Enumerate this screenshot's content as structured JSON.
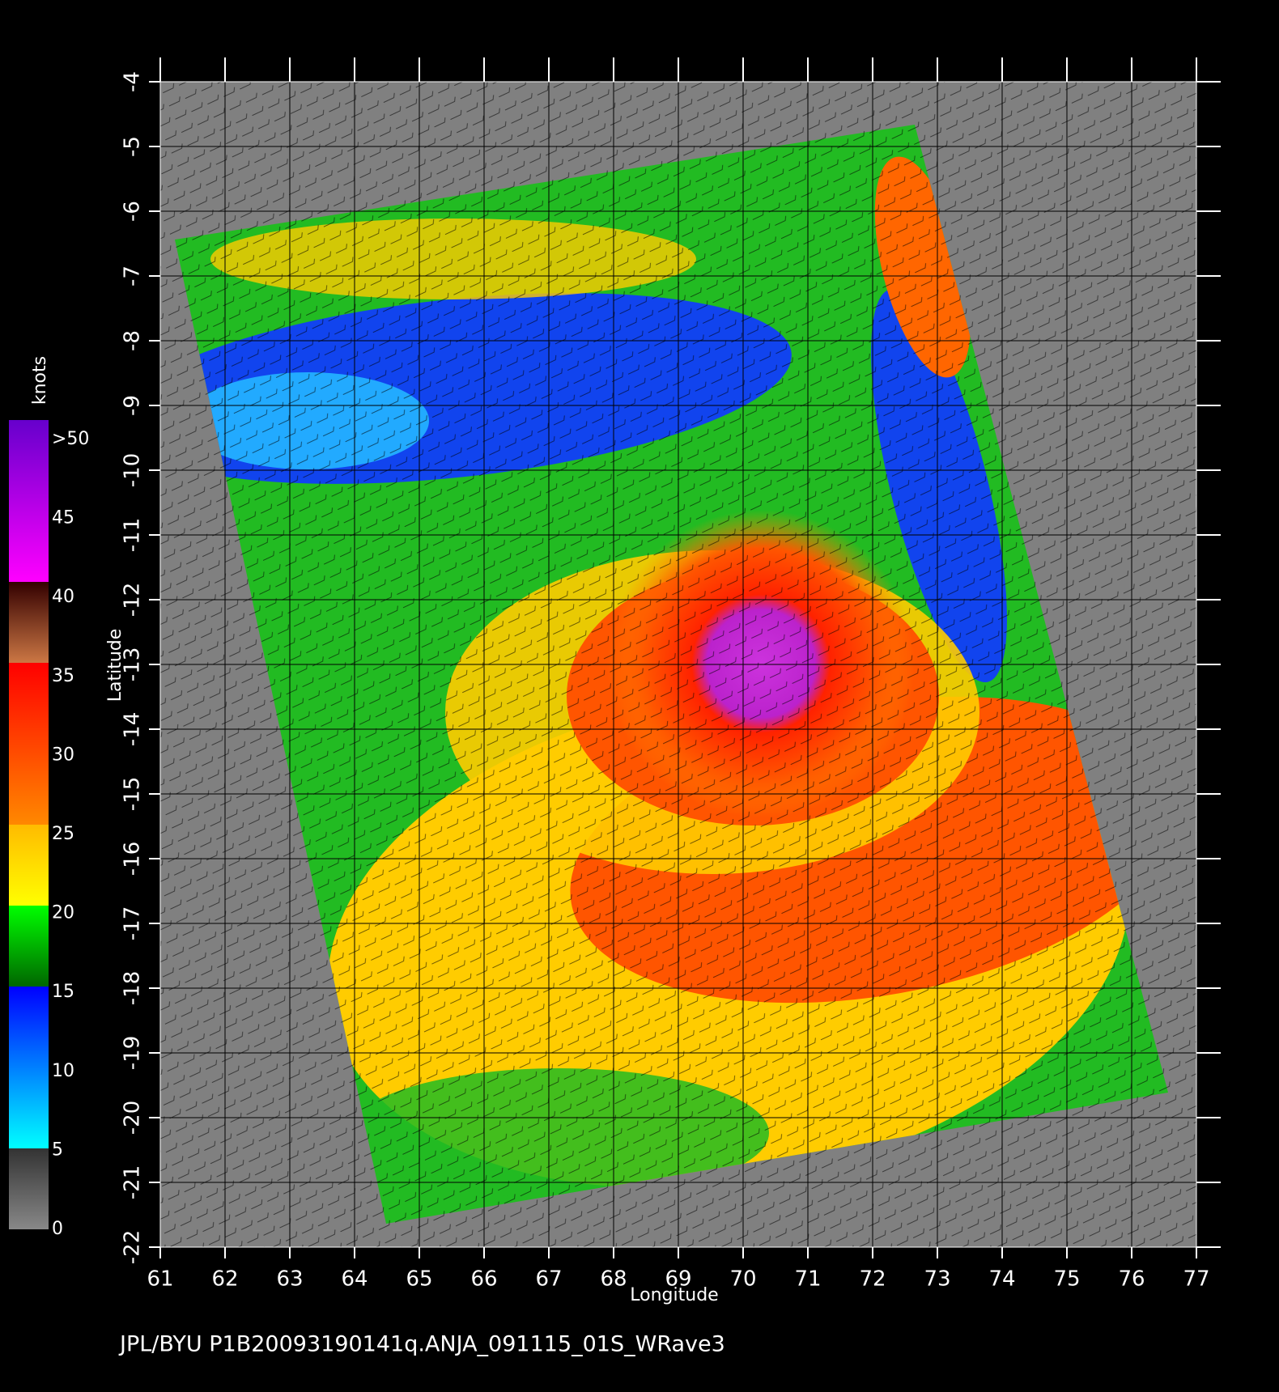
{
  "map": {
    "xlabel": "Longitude",
    "ylabel": "Latitude",
    "xlim": [
      61,
      77
    ],
    "ylim": [
      -22,
      -4
    ],
    "xticks": [
      61,
      62,
      63,
      64,
      65,
      66,
      67,
      68,
      69,
      70,
      71,
      72,
      73,
      74,
      75,
      76,
      77
    ],
    "yticks": [
      -4,
      -5,
      -6,
      -7,
      -8,
      -9,
      -10,
      -11,
      -12,
      -13,
      -14,
      -15,
      -16,
      -17,
      -18,
      -19,
      -20,
      -21,
      -22
    ]
  },
  "colorbar": {
    "title": "knots",
    "lim": [
      0,
      50
    ],
    "ticks": [
      0,
      5,
      10,
      15,
      20,
      25,
      30,
      35,
      40,
      45,
      {
        "value": 50,
        "label": ">50"
      }
    ]
  },
  "footer": "JPL/BYU  P1B20093190141q.ANJA_091115_01S_WRave3"
}
